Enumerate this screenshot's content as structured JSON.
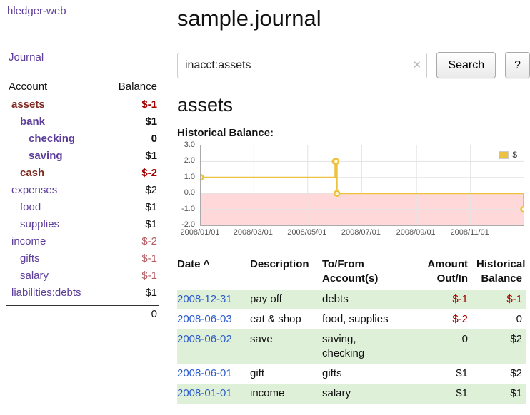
{
  "brand": {
    "title": "hledger-web"
  },
  "nav": {
    "journal": "Journal"
  },
  "sidebar": {
    "columns": {
      "account": "Account",
      "balance": "Balance"
    },
    "accounts": [
      {
        "name": "assets",
        "balance": "$-1",
        "level": 0,
        "emph": true,
        "name_color": "maroon",
        "balance_color": "red_strong"
      },
      {
        "name": "bank",
        "balance": "$1",
        "level": 1,
        "emph": true,
        "name_color": "purple",
        "balance_color": "default"
      },
      {
        "name": "checking",
        "balance": "0",
        "level": 2,
        "emph": true,
        "name_color": "purple",
        "balance_color": "default"
      },
      {
        "name": "saving",
        "balance": "$1",
        "level": 2,
        "emph": true,
        "name_color": "purple",
        "balance_color": "default"
      },
      {
        "name": "cash",
        "balance": "$-2",
        "level": 1,
        "emph": true,
        "name_color": "maroon",
        "balance_color": "red_strong"
      },
      {
        "name": "expenses",
        "balance": "$2",
        "level": 0,
        "emph": false,
        "name_color": "purple",
        "balance_color": "default"
      },
      {
        "name": "food",
        "balance": "$1",
        "level": 1,
        "emph": false,
        "name_color": "purple",
        "balance_color": "default"
      },
      {
        "name": "supplies",
        "balance": "$1",
        "level": 1,
        "emph": false,
        "name_color": "purple",
        "balance_color": "default"
      },
      {
        "name": "income",
        "balance": "$-2",
        "level": 0,
        "emph": false,
        "name_color": "purple",
        "balance_color": "red_muted"
      },
      {
        "name": "gifts",
        "balance": "$-1",
        "level": 1,
        "emph": false,
        "name_color": "purple",
        "balance_color": "red_muted"
      },
      {
        "name": "salary",
        "balance": "$-1",
        "level": 1,
        "emph": false,
        "name_color": "purple",
        "balance_color": "red_muted"
      },
      {
        "name": "liabilities:debts",
        "balance": "$1",
        "level": 0,
        "emph": false,
        "name_color": "purple",
        "balance_color": "default"
      }
    ],
    "total": "0"
  },
  "page": {
    "title": "sample.journal"
  },
  "search": {
    "value": "inacct:assets",
    "clear_icon": "×",
    "submit_label": "Search",
    "help_label": "?"
  },
  "account_page": {
    "title": "assets",
    "chart_heading": "Historical Balance:"
  },
  "chart_data": {
    "type": "line",
    "line_style": "step",
    "title": "Historical Balance",
    "x_type": "date",
    "xlim": [
      "2008-01-01",
      "2008-12-31"
    ],
    "ylim": [
      -2,
      3
    ],
    "yticks": [
      "3.0",
      "2.0",
      "1.0",
      "0.0",
      "-1.0",
      "-2.0"
    ],
    "xticks": [
      "2008/01/01",
      "2008/03/01",
      "2008/05/01",
      "2008/07/01",
      "2008/09/01",
      "2008/11/01"
    ],
    "grid": true,
    "legend_position": "top-right",
    "series": [
      {
        "name": "$",
        "color": "#edc240",
        "points": [
          {
            "x": "2008-01-01",
            "y": 1
          },
          {
            "x": "2008-06-01",
            "y": 2
          },
          {
            "x": "2008-06-02",
            "y": 2
          },
          {
            "x": "2008-06-03",
            "y": 0
          },
          {
            "x": "2008-12-31",
            "y": -1
          }
        ]
      }
    ],
    "negative_region": {
      "from": -2,
      "to": 0,
      "color": "#ffd9d9"
    }
  },
  "register": {
    "sort_icon": "^",
    "columns": [
      {
        "label": "Date"
      },
      {
        "label": "Description"
      },
      {
        "label": "To/From Account(s)"
      },
      {
        "label": "Amount Out/In"
      },
      {
        "label": "Historical Balance"
      }
    ],
    "rows": [
      {
        "date": "2008-12-31",
        "description": "pay off",
        "accounts": "debts",
        "amount": "$-1",
        "balance": "$-1",
        "amount_negative": true,
        "balance_negative": true,
        "shaded": true
      },
      {
        "date": "2008-06-03",
        "description": "eat & shop",
        "accounts": "food, supplies",
        "amount": "$-2",
        "balance": "0",
        "amount_negative": true,
        "balance_negative": false,
        "shaded": false
      },
      {
        "date": "2008-06-02",
        "description": "save",
        "accounts": "saving,\nchecking",
        "amount": "0",
        "balance": "$2",
        "amount_negative": false,
        "balance_negative": false,
        "shaded": true
      },
      {
        "date": "2008-06-01",
        "description": "gift",
        "accounts": "gifts",
        "amount": "$1",
        "balance": "$2",
        "amount_negative": false,
        "balance_negative": false,
        "shaded": false
      },
      {
        "date": "2008-01-01",
        "description": "income",
        "accounts": "salary",
        "amount": "$1",
        "balance": "$1",
        "amount_negative": false,
        "balance_negative": false,
        "shaded": true
      }
    ]
  },
  "colors": {
    "purple": "#5c3d99",
    "maroon": "#7f2a22",
    "red_strong": "#a40000",
    "red_muted": "#b25c63",
    "date_link": "#2a5bcc",
    "row_green": "#dff0d8",
    "chart_line": "#edc240",
    "chart_negative_fill": "#ffd9d9",
    "grid_line": "#e3e3e3",
    "plot_border": "#aaaaaa",
    "axis_text": "#545454"
  }
}
